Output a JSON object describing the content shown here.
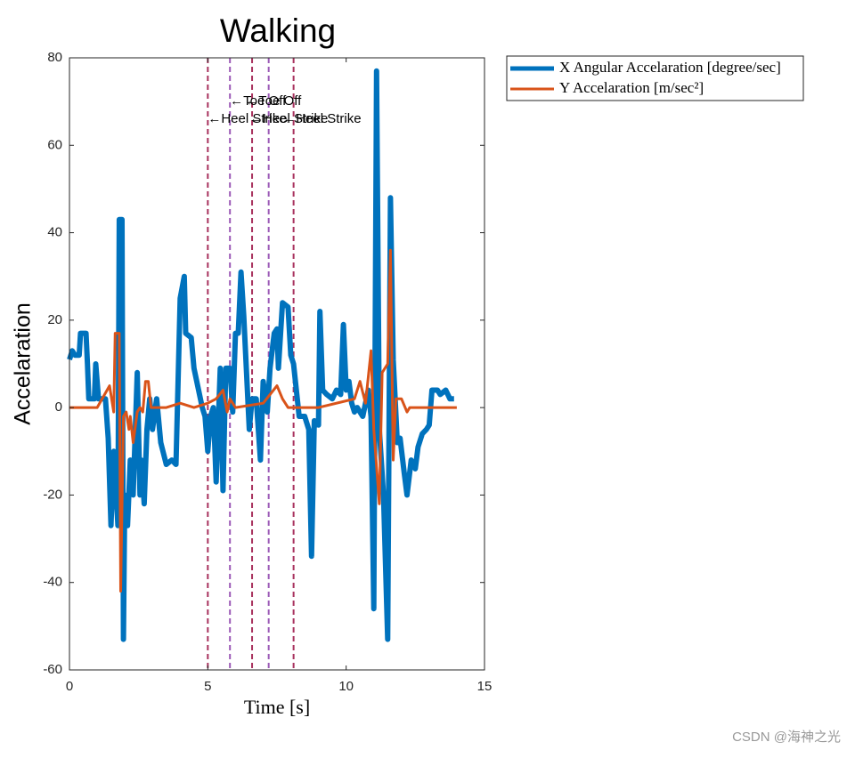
{
  "chart_data": {
    "type": "line",
    "title": "Walking",
    "xlabel": "Time [s]",
    "ylabel": "Accelaration",
    "xlim": [
      0,
      15
    ],
    "ylim": [
      -60,
      80
    ],
    "xticks": [
      0,
      5,
      10,
      15
    ],
    "yticks": [
      -60,
      -40,
      -20,
      0,
      20,
      40,
      60,
      80
    ],
    "legend": "outside top right",
    "series": [
      {
        "name": "X Angular Accelaration [degree/sec]",
        "color": "#0072bd",
        "x": [
          0,
          0.1,
          0.2,
          0.35,
          0.4,
          0.6,
          0.65,
          0.7,
          0.9,
          0.95,
          1.05,
          1.3,
          1.4,
          1.5,
          1.6,
          1.75,
          1.8,
          1.9,
          1.95,
          2.0,
          2.1,
          2.2,
          2.3,
          2.45,
          2.55,
          2.6,
          2.7,
          2.8,
          2.9,
          3.0,
          3.15,
          3.3,
          3.5,
          3.7,
          3.85,
          4.0,
          4.15,
          4.2,
          4.4,
          4.5,
          4.8,
          4.9,
          5.0,
          5.1,
          5.2,
          5.3,
          5.45,
          5.55,
          5.65,
          5.8,
          5.9,
          6.0,
          6.1,
          6.2,
          6.3,
          6.4,
          6.5,
          6.6,
          6.75,
          6.9,
          7.0,
          7.15,
          7.25,
          7.4,
          7.5,
          7.55,
          7.7,
          7.9,
          8.0,
          8.1,
          8.3,
          8.5,
          8.65,
          8.75,
          8.85,
          9.0,
          9.05,
          9.15,
          9.3,
          9.5,
          9.65,
          9.8,
          9.9,
          10.0,
          10.1,
          10.2,
          10.3,
          10.4,
          10.6,
          10.8,
          10.9,
          11.0,
          11.1,
          11.2,
          11.35,
          11.5,
          11.55,
          11.6,
          11.7,
          11.85,
          11.95,
          12.1,
          12.2,
          12.35,
          12.5,
          12.6,
          12.75,
          12.9,
          13.0,
          13.1,
          13.3,
          13.4,
          13.6,
          13.75,
          13.9
        ],
        "values": [
          11,
          13,
          12,
          12,
          17,
          17,
          10,
          2,
          2,
          10,
          2,
          2,
          -7,
          -27,
          -10,
          -27,
          43,
          43,
          -53,
          -20,
          -27,
          -12,
          -20,
          8,
          -20,
          -12,
          -22,
          -5,
          2,
          -5,
          2,
          -8,
          -13,
          -12,
          -13,
          25,
          30,
          17,
          16,
          9,
          0,
          -2,
          -10,
          -2,
          0,
          -17,
          9,
          -19,
          9,
          9,
          -1,
          17,
          17,
          31,
          21,
          8,
          -5,
          2,
          2,
          -12,
          6,
          -1,
          9,
          17,
          18,
          9,
          24,
          23,
          12,
          10,
          -2,
          -2,
          -5,
          -34,
          -3,
          -4,
          22,
          4,
          3,
          2,
          4,
          3,
          19,
          4,
          6,
          1,
          -1,
          0,
          -2,
          4,
          -2,
          -46,
          77,
          -5,
          -20,
          -53,
          -5,
          48,
          11,
          -8,
          -7,
          -15,
          -20,
          -12,
          -14,
          -9,
          -6,
          -5,
          -4,
          4,
          4,
          3,
          4,
          2,
          2
        ]
      },
      {
        "name": "Y Accelaration [m/sec²]",
        "color": "#d95319",
        "x": [
          0,
          0.5,
          1.0,
          1.45,
          1.6,
          1.65,
          1.8,
          1.85,
          1.95,
          2.05,
          2.15,
          2.2,
          2.3,
          2.45,
          2.55,
          2.65,
          2.75,
          2.85,
          2.95,
          3.5,
          4.0,
          4.5,
          5.0,
          5.3,
          5.55,
          5.7,
          5.8,
          6.0,
          7.0,
          7.5,
          7.7,
          7.9,
          9.0,
          10.3,
          10.5,
          10.7,
          10.9,
          11.0,
          11.2,
          11.3,
          11.5,
          11.6,
          11.7,
          11.8,
          12.0,
          12.2,
          12.3,
          14.0
        ],
        "values": [
          0,
          0,
          0,
          5,
          -1,
          17,
          17,
          -42,
          -2,
          -1,
          -5,
          -2,
          -8,
          -1,
          0,
          -1,
          6,
          6,
          0,
          0,
          1,
          0,
          1,
          2,
          4,
          -1,
          2,
          0,
          1,
          5,
          2,
          0,
          0,
          2,
          6,
          1,
          13,
          -5,
          -22,
          8,
          10,
          36,
          -12,
          2,
          2,
          -1,
          0,
          0
        ]
      }
    ],
    "vlines": [
      {
        "x": 5.0,
        "color": "#a8325e"
      },
      {
        "x": 5.8,
        "color": "#9b59b6"
      },
      {
        "x": 6.6,
        "color": "#a8325e"
      },
      {
        "x": 7.2,
        "color": "#9b59b6"
      },
      {
        "x": 8.1,
        "color": "#a8325e"
      }
    ],
    "annotations": [
      {
        "text": "←Toe Off",
        "x": 5.8,
        "y": 70
      },
      {
        "text": "←Toe Off",
        "x": 6.35,
        "y": 70
      },
      {
        "text": "←Heel Strike",
        "x": 5.0,
        "y": 66
      },
      {
        "text": "←Heel Strike",
        "x": 6.5,
        "y": 66
      },
      {
        "text": "←Heel Strike",
        "x": 7.7,
        "y": 66
      }
    ],
    "watermark": "CSDN @海神之光"
  }
}
